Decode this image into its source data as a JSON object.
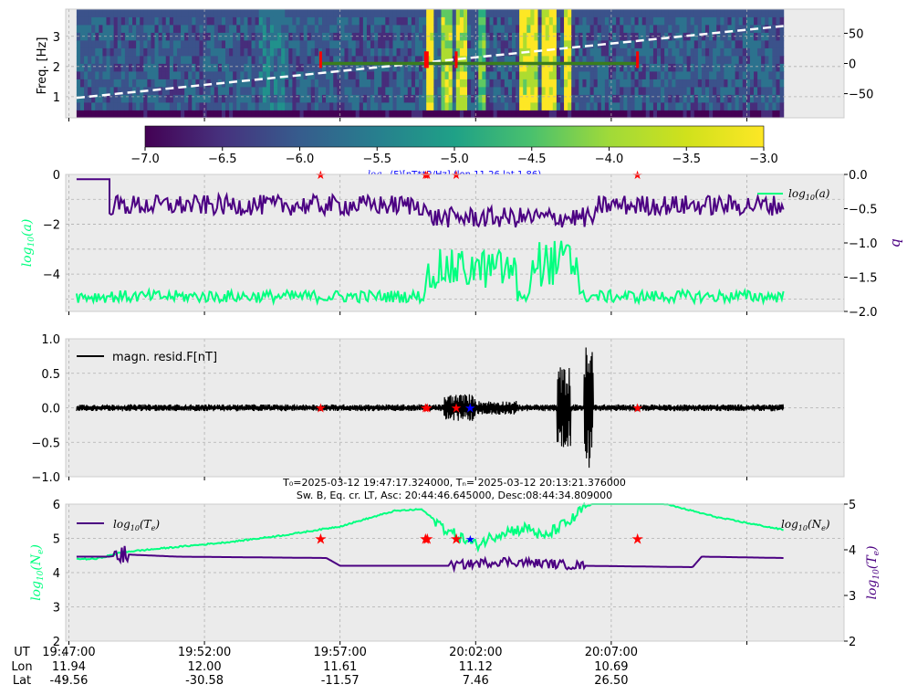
{
  "chart_data": [
    {
      "type": "heatmap",
      "panel": "spectrogram",
      "ylabel": "Freq. [Hz]",
      "yticks": [
        "1",
        "2",
        "3"
      ],
      "ylim": [
        0.3,
        3.9
      ],
      "right_yticks": [
        "50",
        "0",
        "−50"
      ],
      "right_ylim": [
        -90,
        90
      ],
      "colorbar": {
        "ticks": [
          "−7.0",
          "−6.5",
          "−6.0",
          "−5.5",
          "−5.0",
          "−4.5",
          "−4.0",
          "−3.5",
          "−3.0"
        ],
        "range": [
          -7.0,
          -3.0
        ],
        "colormap": "viridis",
        "label_prefix": "log",
        "label_sub": "10",
        "label_rest": "(F)[nT**2/Hz] (lon 11.26 lat 1.86)"
      },
      "background_level": -5.8,
      "bands": [
        {
          "from": "19:54:00",
          "to": "19:55:00",
          "level": -5.3
        },
        {
          "from": "20:00:10",
          "to": "20:00:25",
          "level": -3.2
        },
        {
          "from": "20:00:45",
          "to": "20:01:05",
          "level": -3.7
        },
        {
          "from": "20:01:20",
          "to": "20:01:40",
          "level": -3.5
        },
        {
          "from": "20:02:10",
          "to": "20:02:25",
          "level": -4.2
        },
        {
          "from": "20:03:40",
          "to": "20:04:15",
          "level": -3.5
        },
        {
          "from": "20:04:30",
          "to": "20:04:55",
          "level": -3.2
        },
        {
          "from": "20:05:15",
          "to": "20:05:30",
          "level": -3.4
        }
      ],
      "dashed_line": {
        "start": {
          "time": "19:47:17",
          "value": -57
        },
        "end": {
          "time": "20:13:21",
          "value": 62
        }
      },
      "marker_line": {
        "from": "19:56:17",
        "to": "20:07:58",
        "freq": 2.1
      }
    },
    {
      "type": "line",
      "panel": "a_b",
      "ylabel": "log10(a)",
      "ylim": [
        -5.5,
        0
      ],
      "yticks": [
        "0",
        "−2",
        "−4"
      ],
      "right_ylabel": "b",
      "right_ylim": [
        -2.0,
        0.0
      ],
      "right_yticks": [
        "0.0",
        "−0.5",
        "−1.0",
        "−1.5",
        "−2.0"
      ],
      "series": [
        {
          "name": "log10(a)",
          "color": "#00ff7f",
          "base": -4.9,
          "noise": 0.25,
          "bursts": [
            {
              "from": "20:00:10",
              "to": "20:03:30",
              "min": -4.6,
              "max": -3.0
            },
            {
              "from": "20:04:00",
              "to": "20:05:50",
              "min": -4.5,
              "max": -2.6
            }
          ]
        },
        {
          "series_color": "#4b0082",
          "base": -0.45,
          "noise": 0.15,
          "unit": "b"
        }
      ]
    },
    {
      "type": "line",
      "panel": "residual",
      "ylim": [
        -1.0,
        1.0
      ],
      "yticks": [
        "1.0",
        "0.5",
        "0.0",
        "−0.5",
        "−1.0"
      ],
      "legend": "magn. resid.F[nT]",
      "series": [
        {
          "name": "magn. resid.F[nT]",
          "color": "#000000",
          "base_amplitude": 0.05,
          "bursts": [
            {
              "from": "20:00:50",
              "to": "20:02:00",
              "amp": 0.2
            },
            {
              "from": "20:02:00",
              "to": "20:03:30",
              "amp": 0.1
            },
            {
              "from": "20:05:00",
              "to": "20:05:30",
              "amp": 0.6
            },
            {
              "from": "20:06:00",
              "to": "20:06:20",
              "amp": 0.9
            }
          ]
        }
      ]
    },
    {
      "type": "line",
      "panel": "plasma",
      "title_line1": "T₀=2025-03-12 19:47:17.324000, Tₙ= 2025-03-12 20:13:21.376000",
      "title_line2": "Sw. B, Eq. cr. LT, Asc: 20:44:46.645000, Desc:08:44:34.809000",
      "ylabel": "log10(Ne)",
      "ylim": [
        2,
        6
      ],
      "yticks": [
        "6",
        "5",
        "4",
        "3",
        "2"
      ],
      "right_ylabel": "log10(Te)",
      "right_ylim": [
        2,
        5
      ],
      "right_yticks": [
        "5",
        "4",
        "3",
        "2"
      ],
      "series": [
        {
          "name": "log10(Ne)",
          "color": "#00ff7f",
          "points": [
            [
              "19:47:17",
              4.4
            ],
            [
              "19:48:00",
              4.4
            ],
            [
              "19:49:00",
              4.6
            ],
            [
              "19:51:00",
              4.75
            ],
            [
              "19:53:00",
              4.9
            ],
            [
              "19:55:00",
              5.1
            ],
            [
              "19:57:00",
              5.35
            ],
            [
              "19:59:00",
              5.8
            ],
            [
              "20:00:00",
              5.85
            ],
            [
              "20:01:00",
              5.2
            ],
            [
              "20:01:30",
              5.0
            ],
            [
              "20:02:00",
              4.8
            ],
            [
              "20:03:00",
              5.2
            ],
            [
              "20:04:00",
              5.3
            ],
            [
              "20:04:30",
              5.0
            ],
            [
              "20:05:00",
              5.3
            ],
            [
              "20:05:30",
              5.5
            ],
            [
              "20:06:00",
              5.9
            ],
            [
              "20:07:00",
              6.2
            ],
            [
              "20:08:30",
              6.1
            ],
            [
              "20:11:00",
              5.6
            ],
            [
              "20:13:21",
              5.25
            ]
          ]
        },
        {
          "name": "log10(Te)",
          "color": "#4b0082",
          "points": [
            [
              "19:47:17",
              3.85
            ],
            [
              "19:48:30",
              3.85
            ],
            [
              "19:49:00",
              3.9
            ],
            [
              "19:51:00",
              3.85
            ],
            [
              "19:56:30",
              3.82
            ],
            [
              "19:57:00",
              3.65
            ],
            [
              "20:01:00",
              3.65
            ],
            [
              "20:03:00",
              3.75
            ],
            [
              "20:06:00",
              3.65
            ],
            [
              "20:10:00",
              3.62
            ],
            [
              "20:10:20",
              3.85
            ],
            [
              "20:13:21",
              3.82
            ]
          ]
        }
      ]
    }
  ],
  "events": {
    "red_times": [
      "19:56:17",
      "20:00:09",
      "20:00:13",
      "20:01:17",
      "20:07:58"
    ],
    "blue_time": "20:01:48"
  },
  "xaxis": {
    "row_labels": [
      "UT",
      "Lon",
      "Lat"
    ],
    "colon": ":",
    "ticks": [
      {
        "time": "19:47:00",
        "ut": "19:47:00",
        "lon": "11.94",
        "lat": "-49.56"
      },
      {
        "time": "19:52:00",
        "ut": "19:52:00",
        "lon": "12.00",
        "lat": "-30.58"
      },
      {
        "time": "19:57:00",
        "ut": "19:57:00",
        "lon": "11.61",
        "lat": "-11.57"
      },
      {
        "time": "20:02:00",
        "ut": "20:02:00",
        "lon": "11.12",
        "lat": "7.46"
      },
      {
        "time": "20:07:00",
        "ut": "20:07:00",
        "lon": "10.69",
        "lat": "26.50"
      }
    ],
    "range": [
      "19:46:53",
      "20:15:35"
    ]
  },
  "colors": {
    "plot_bg": "#ebebeb",
    "green": "#00ff7f",
    "purple": "#4b0082",
    "red": "#ff0000",
    "blue": "#0000ff"
  }
}
